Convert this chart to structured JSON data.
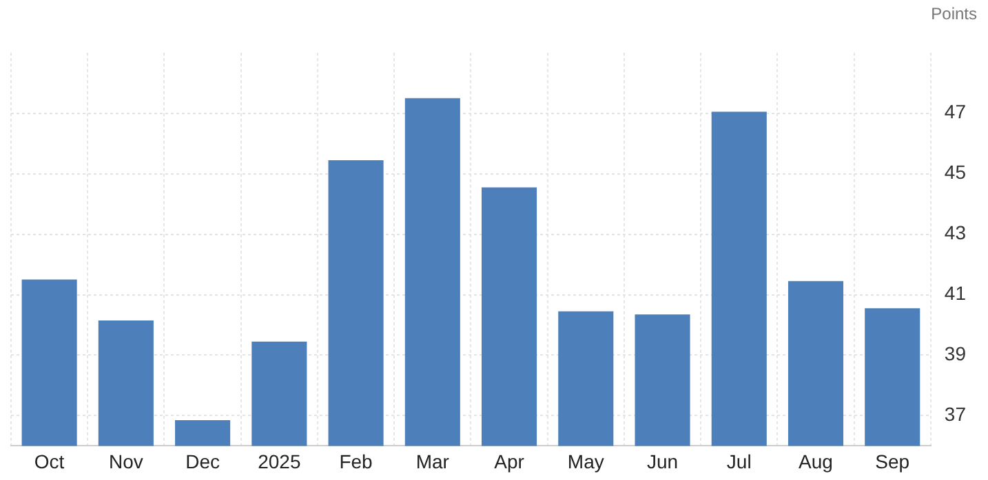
{
  "chart_data": {
    "type": "bar",
    "ylabel": "Points",
    "categories": [
      "Oct",
      "Nov",
      "Dec",
      "2025",
      "Feb",
      "Mar",
      "Apr",
      "May",
      "Jun",
      "Jul",
      "Aug",
      "Sep"
    ],
    "values": [
      41.5,
      40.15,
      36.85,
      39.45,
      45.45,
      47.5,
      44.55,
      40.45,
      40.35,
      47.05,
      41.45,
      40.55
    ],
    "color": "#4d7fba",
    "ylim": [
      36,
      49
    ],
    "yticks": [
      37,
      39,
      41,
      43,
      45,
      47
    ],
    "grid": true
  }
}
